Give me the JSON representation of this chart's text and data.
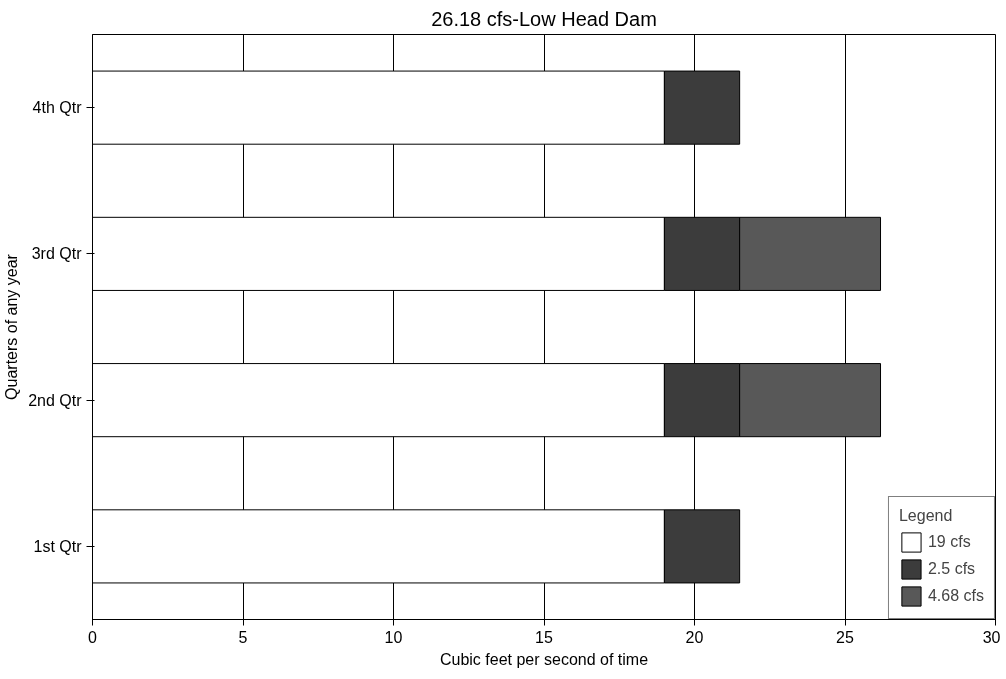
{
  "chart_data": {
    "type": "bar",
    "orientation": "horizontal",
    "stacked": true,
    "title": "26.18 cfs-Low Head Dam",
    "xlabel": "Cubic feet per second of time",
    "ylabel": "Quarters of any year",
    "categories": [
      "4th Qtr",
      "3rd Qtr",
      "2nd Qtr",
      "1st Qtr"
    ],
    "series": [
      {
        "name": "19 cfs",
        "color": "#ffffff",
        "values": [
          19,
          19,
          19,
          19
        ]
      },
      {
        "name": "2.5 cfs",
        "color": "#3c3c3c",
        "values": [
          2.5,
          2.5,
          2.5,
          2.5
        ]
      },
      {
        "name": "4.68 cfs",
        "color": "#585858",
        "values": [
          null,
          4.68,
          4.68,
          null
        ]
      }
    ],
    "xlim": [
      0,
      30
    ],
    "xticks": [
      0,
      5,
      10,
      15,
      20,
      25,
      30
    ],
    "grid": "x",
    "legend": "bottom right",
    "legend_title": "Legend"
  }
}
